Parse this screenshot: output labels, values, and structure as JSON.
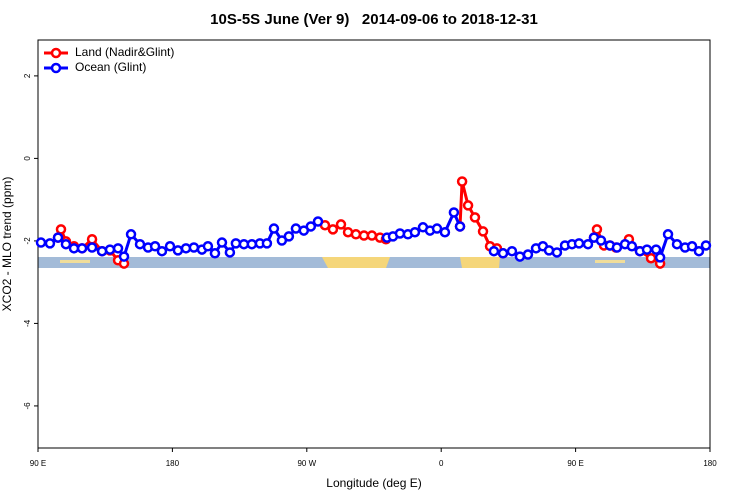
{
  "chart_data": {
    "type": "line",
    "title": "10S-5S June (Ver 9)   2014-09-06 to 2018-12-31",
    "x_label": "Longitude (deg E)",
    "y_label": "XCO2 - MLO trend (ppm)",
    "xlim": [
      90,
      540
    ],
    "xticks": [
      {
        "value": 90,
        "label": "90 E"
      },
      180,
      {
        "value": 270,
        "label": "90 W"
      },
      {
        "value": 360,
        "label": "0"
      },
      {
        "value": 450,
        "label": "90 E"
      },
      {
        "value": 540,
        "label": "180"
      }
    ],
    "ylim": [
      -7.02,
      2.87
    ],
    "yticks": [
      2,
      0,
      -2,
      -4,
      -6
    ],
    "legend": "top-left",
    "series": [
      {
        "name": "Land (Nadir&Glint)",
        "color": "#ff0000",
        "x": [
          103.4,
          105.4,
          108.7,
          114.1,
          119.5,
          126.2,
          132.9,
          138.2,
          143.6,
          147.6,
          null,
          282.2,
          287.5,
          292.9,
          297.6,
          302.9,
          308.3,
          313.6,
          319.0,
          323.0,
          null,
          372.6,
          374.0,
          378.0,
          382.6,
          388.0,
          392.7,
          397.3,
          401.4,
          null,
          462.3,
          464.3,
          469.0,
          473.0,
          477.0,
          485.7,
          493.1,
          500.5,
          506.6
        ],
        "values": [
          -1.92,
          -1.72,
          -2.01,
          -2.13,
          -2.18,
          -1.96,
          -2.25,
          -2.23,
          -2.47,
          -2.55,
          null,
          -1.62,
          -1.72,
          -1.6,
          -1.79,
          -1.84,
          -1.87,
          -1.87,
          -1.92,
          -1.96,
          null,
          -1.65,
          -0.56,
          -1.14,
          -1.43,
          -1.77,
          -2.13,
          -2.18,
          -2.3,
          null,
          -1.92,
          -1.72,
          -2.11,
          -2.11,
          -2.16,
          -1.96,
          -2.25,
          -2.42,
          -2.55
        ]
      },
      {
        "name": "Ocean (Glint)",
        "color": "#0000ff",
        "x": [
          92.0,
          98.0,
          103.4,
          108.7,
          114.1,
          119.5,
          126.2,
          132.9,
          138.2,
          143.6,
          147.6,
          152.3,
          158.3,
          163.7,
          168.4,
          173.0,
          178.4,
          183.7,
          189.1,
          194.4,
          199.8,
          203.8,
          208.5,
          213.2,
          218.5,
          222.5,
          227.9,
          233.2,
          238.6,
          243.3,
          248.0,
          253.3,
          258.0,
          262.7,
          268.0,
          272.7,
          277.5,
          null,
          323.7,
          327.7,
          332.4,
          337.7,
          342.4,
          347.8,
          352.5,
          357.2,
          362.5,
          368.5,
          372.6,
          null,
          395.3,
          401.4,
          407.4,
          412.7,
          418.1,
          423.5,
          428.1,
          432.2,
          437.5,
          442.9,
          447.6,
          452.3,
          458.3,
          462.3,
          467.0,
          473.0,
          477.7,
          483.1,
          487.7,
          493.1,
          497.8,
          503.9,
          506.6,
          511.9,
          517.9,
          523.3,
          528.0,
          532.6,
          537.3
        ],
        "values": [
          -2.04,
          -2.06,
          -1.92,
          -2.08,
          -2.18,
          -2.18,
          -2.16,
          -2.25,
          -2.21,
          -2.18,
          -2.38,
          -1.84,
          -2.08,
          -2.16,
          -2.13,
          -2.25,
          -2.13,
          -2.23,
          -2.18,
          -2.16,
          -2.21,
          -2.13,
          -2.3,
          -2.04,
          -2.28,
          -2.06,
          -2.08,
          -2.08,
          -2.06,
          -2.06,
          -1.7,
          -1.99,
          -1.89,
          -1.7,
          -1.75,
          -1.65,
          -1.53,
          null,
          -1.92,
          -1.89,
          -1.82,
          -1.84,
          -1.79,
          -1.67,
          -1.75,
          -1.7,
          -1.79,
          -1.31,
          -1.65,
          null,
          -2.25,
          -2.3,
          -2.25,
          -2.38,
          -2.33,
          -2.18,
          -2.13,
          -2.23,
          -2.28,
          -2.11,
          -2.08,
          -2.06,
          -2.08,
          -1.92,
          -1.99,
          -2.11,
          -2.16,
          -2.08,
          -2.13,
          -2.25,
          -2.21,
          -2.21,
          -2.4,
          -1.84,
          -2.08,
          -2.16,
          -2.13,
          -2.25,
          -2.11
        ]
      }
    ]
  }
}
